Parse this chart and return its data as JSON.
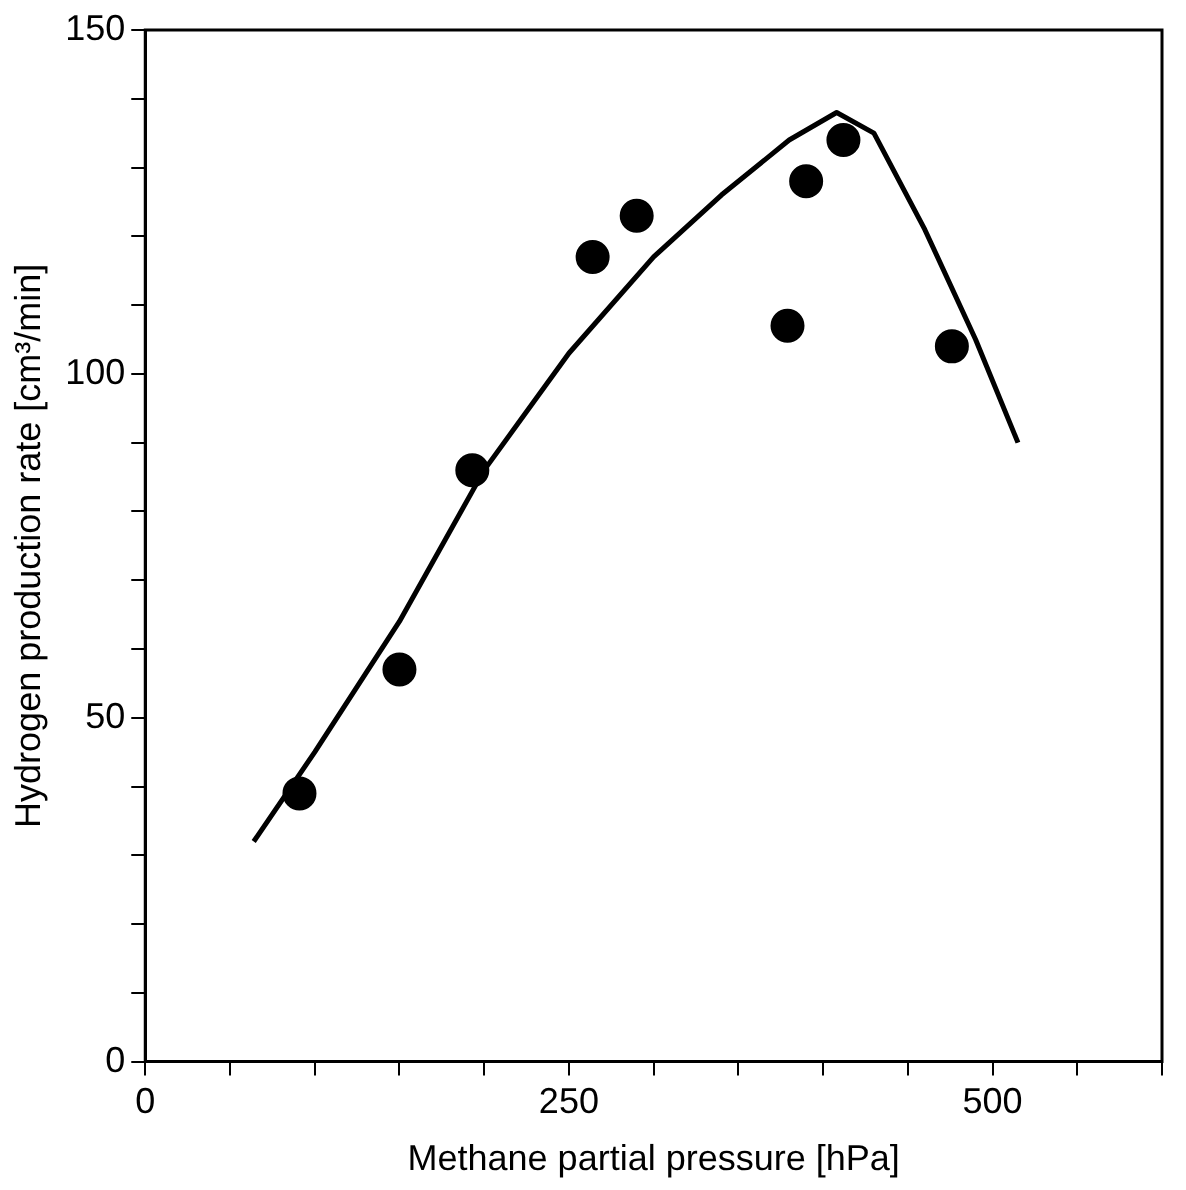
{
  "chart_data": {
    "type": "scatter",
    "xlabel": "Methane partial pressure [hPa]",
    "ylabel": "Hydrogen production rate [cm³/min]",
    "xlim": [
      0,
      600
    ],
    "ylim": [
      0,
      150
    ],
    "xticks": [
      0,
      {
        "value": 50,
        "label": null
      },
      {
        "value": 100,
        "label": null
      },
      {
        "value": 150,
        "label": null
      },
      {
        "value": 200,
        "label": null
      },
      250,
      {
        "value": 300,
        "label": null
      },
      {
        "value": 350,
        "label": null
      },
      {
        "value": 400,
        "label": null
      },
      {
        "value": 450,
        "label": null
      },
      500,
      {
        "value": 550,
        "label": null
      },
      {
        "value": 600,
        "label": null
      }
    ],
    "yticks": [
      0,
      {
        "value": 10,
        "label": null
      },
      {
        "value": 20,
        "label": null
      },
      {
        "value": 30,
        "label": null
      },
      {
        "value": 40,
        "label": null
      },
      50,
      {
        "value": 60,
        "label": null
      },
      {
        "value": 70,
        "label": null
      },
      {
        "value": 80,
        "label": null
      },
      {
        "value": 90,
        "label": null
      },
      100,
      {
        "value": 110,
        "label": null
      },
      {
        "value": 120,
        "label": null
      },
      {
        "value": 130,
        "label": null
      },
      {
        "value": 140,
        "label": null
      },
      150
    ],
    "grid": false,
    "legend": false,
    "series": [
      {
        "marker": "circle",
        "color": "#000000",
        "x": [
          91,
          150,
          193,
          264,
          290,
          379,
          390,
          412,
          476
        ],
        "values": [
          39,
          57,
          86,
          117,
          123,
          107,
          128,
          134,
          104
        ]
      },
      {
        "type": "line",
        "color": "#000000",
        "x": [
          64,
          100,
          150,
          200,
          250,
          300,
          340,
          380,
          408,
          430,
          460,
          490,
          515
        ],
        "values": [
          32,
          45,
          64,
          86,
          103,
          117,
          126,
          134,
          138,
          135,
          121,
          105,
          90
        ]
      }
    ]
  }
}
